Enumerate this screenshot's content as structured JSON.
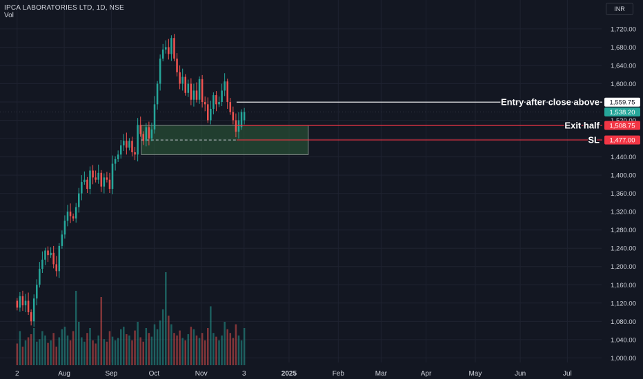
{
  "header": {
    "title": "IPCA LABORATORIES LTD, 1D, NSE",
    "volume_label": "Vol",
    "currency": "INR"
  },
  "colors": {
    "background": "#131722",
    "up": "#26a69a",
    "down": "#ef5350",
    "grid": "#1f2331",
    "axis_text": "#d1d4dc",
    "zone_fill": "#2e5e3a",
    "zone_border": "#9aa5a0"
  },
  "chart_data": {
    "type": "candlestick",
    "ylim": [
      990,
      1738
    ],
    "y_ticks": [
      1000,
      1040,
      1080,
      1120,
      1160,
      1200,
      1240,
      1280,
      1320,
      1360,
      1400,
      1440,
      1480,
      1520,
      1560,
      1600,
      1640,
      1680,
      1720
    ],
    "y_tick_labels": [
      "1,000.00",
      "1,040.00",
      "1,080.00",
      "1,120.00",
      "1,160.00",
      "1,200.00",
      "1,240.00",
      "1,280.00",
      "1,320.00",
      "1,360.00",
      "1,400.00",
      "1,440.00",
      "1,480.00",
      "1,520.00",
      "1,560.00",
      "1,600.00",
      "1,640.00",
      "1,680.00",
      "1,720.00"
    ],
    "x_labels": [
      {
        "label": "2",
        "day": 0
      },
      {
        "label": "Aug",
        "day": 22
      },
      {
        "label": "Sep",
        "day": 44
      },
      {
        "label": "Oct",
        "day": 64
      },
      {
        "label": "Nov",
        "day": 86
      },
      {
        "label": "3",
        "day": 106
      },
      {
        "label": "2025",
        "day": 127
      },
      {
        "label": "Feb",
        "day": 150
      },
      {
        "label": "Mar",
        "day": 170
      },
      {
        "label": "Apr",
        "day": 191
      },
      {
        "label": "May",
        "day": 214
      },
      {
        "label": "Jun",
        "day": 235
      },
      {
        "label": "Jul",
        "day": 257
      }
    ],
    "day_range": [
      -8,
      273
    ],
    "closes": [
      1110,
      1135,
      1115,
      1125,
      1100,
      1080,
      1130,
      1160,
      1195,
      1215,
      1235,
      1225,
      1230,
      1205,
      1190,
      1245,
      1270,
      1300,
      1320,
      1310,
      1305,
      1330,
      1360,
      1385,
      1390,
      1370,
      1410,
      1395,
      1390,
      1405,
      1375,
      1395,
      1390,
      1370,
      1425,
      1435,
      1445,
      1465,
      1475,
      1460,
      1475,
      1450,
      1445,
      1510,
      1490,
      1475,
      1505,
      1480,
      1500,
      1555,
      1600,
      1655,
      1675,
      1680,
      1665,
      1700,
      1655,
      1625,
      1600,
      1615,
      1580,
      1600,
      1565,
      1585,
      1565,
      1610,
      1560,
      1555,
      1520,
      1545,
      1575,
      1555,
      1560,
      1585,
      1605,
      1560,
      1538,
      1520,
      1495,
      1520,
      1538,
      1538
    ],
    "opens": [
      1125,
      1110,
      1135,
      1115,
      1125,
      1100,
      1080,
      1130,
      1160,
      1195,
      1215,
      1235,
      1225,
      1230,
      1205,
      1190,
      1245,
      1270,
      1300,
      1320,
      1310,
      1305,
      1330,
      1360,
      1385,
      1390,
      1370,
      1410,
      1395,
      1390,
      1405,
      1375,
      1395,
      1390,
      1370,
      1425,
      1435,
      1445,
      1465,
      1475,
      1460,
      1475,
      1450,
      1445,
      1510,
      1490,
      1475,
      1505,
      1480,
      1500,
      1555,
      1600,
      1655,
      1675,
      1680,
      1665,
      1700,
      1655,
      1625,
      1600,
      1615,
      1580,
      1600,
      1565,
      1585,
      1565,
      1610,
      1560,
      1555,
      1520,
      1545,
      1575,
      1555,
      1560,
      1585,
      1605,
      1560,
      1538,
      1520,
      1495,
      1505,
      1520
    ],
    "candle_start_day": 0,
    "candle_step_days": 1.31,
    "volumes": [
      35,
      55,
      30,
      40,
      45,
      50,
      60,
      38,
      42,
      55,
      48,
      36,
      40,
      52,
      30,
      45,
      58,
      62,
      48,
      40,
      55,
      120,
      70,
      45,
      38,
      52,
      60,
      40,
      35,
      48,
      110,
      42,
      38,
      55,
      46,
      40,
      44,
      58,
      62,
      50,
      48,
      40,
      56,
      70,
      45,
      38,
      60,
      52,
      46,
      66,
      58,
      72,
      90,
      150,
      80,
      66,
      52,
      48,
      56,
      44,
      40,
      50,
      62,
      58,
      48,
      44,
      52,
      40,
      60,
      95,
      52,
      46,
      40,
      48,
      70,
      58,
      52,
      44,
      66,
      48,
      40,
      60
    ],
    "vol_max": 150,
    "annotations": [
      {
        "label": "Entry after close above",
        "price": 1559.75,
        "price_label": "1,559.75",
        "from_day": 102.5,
        "line_color": "#ffffff",
        "tag_bg": "#ffffff",
        "tag_fg": "#131722"
      },
      {
        "label": "Exit half",
        "price": 1508.75,
        "price_label": "1,508.75",
        "from_day": 102.5,
        "line_color": "#f23645",
        "tag_bg": "#f23645",
        "tag_fg": "#ffffff"
      },
      {
        "label": "SL",
        "price": 1477.0,
        "price_label": "1,477.00",
        "from_day": 102.5,
        "line_color": "#f23645",
        "tag_bg": "#f23645",
        "tag_fg": "#ffffff"
      }
    ],
    "last_price": {
      "price": 1538.2,
      "label": "1,538.20",
      "color": "#26a69a"
    },
    "zone": {
      "from_day": 58,
      "to_day": 136,
      "top": 1508.75,
      "bottom": 1445,
      "mid_dashed": 1477.0
    }
  }
}
